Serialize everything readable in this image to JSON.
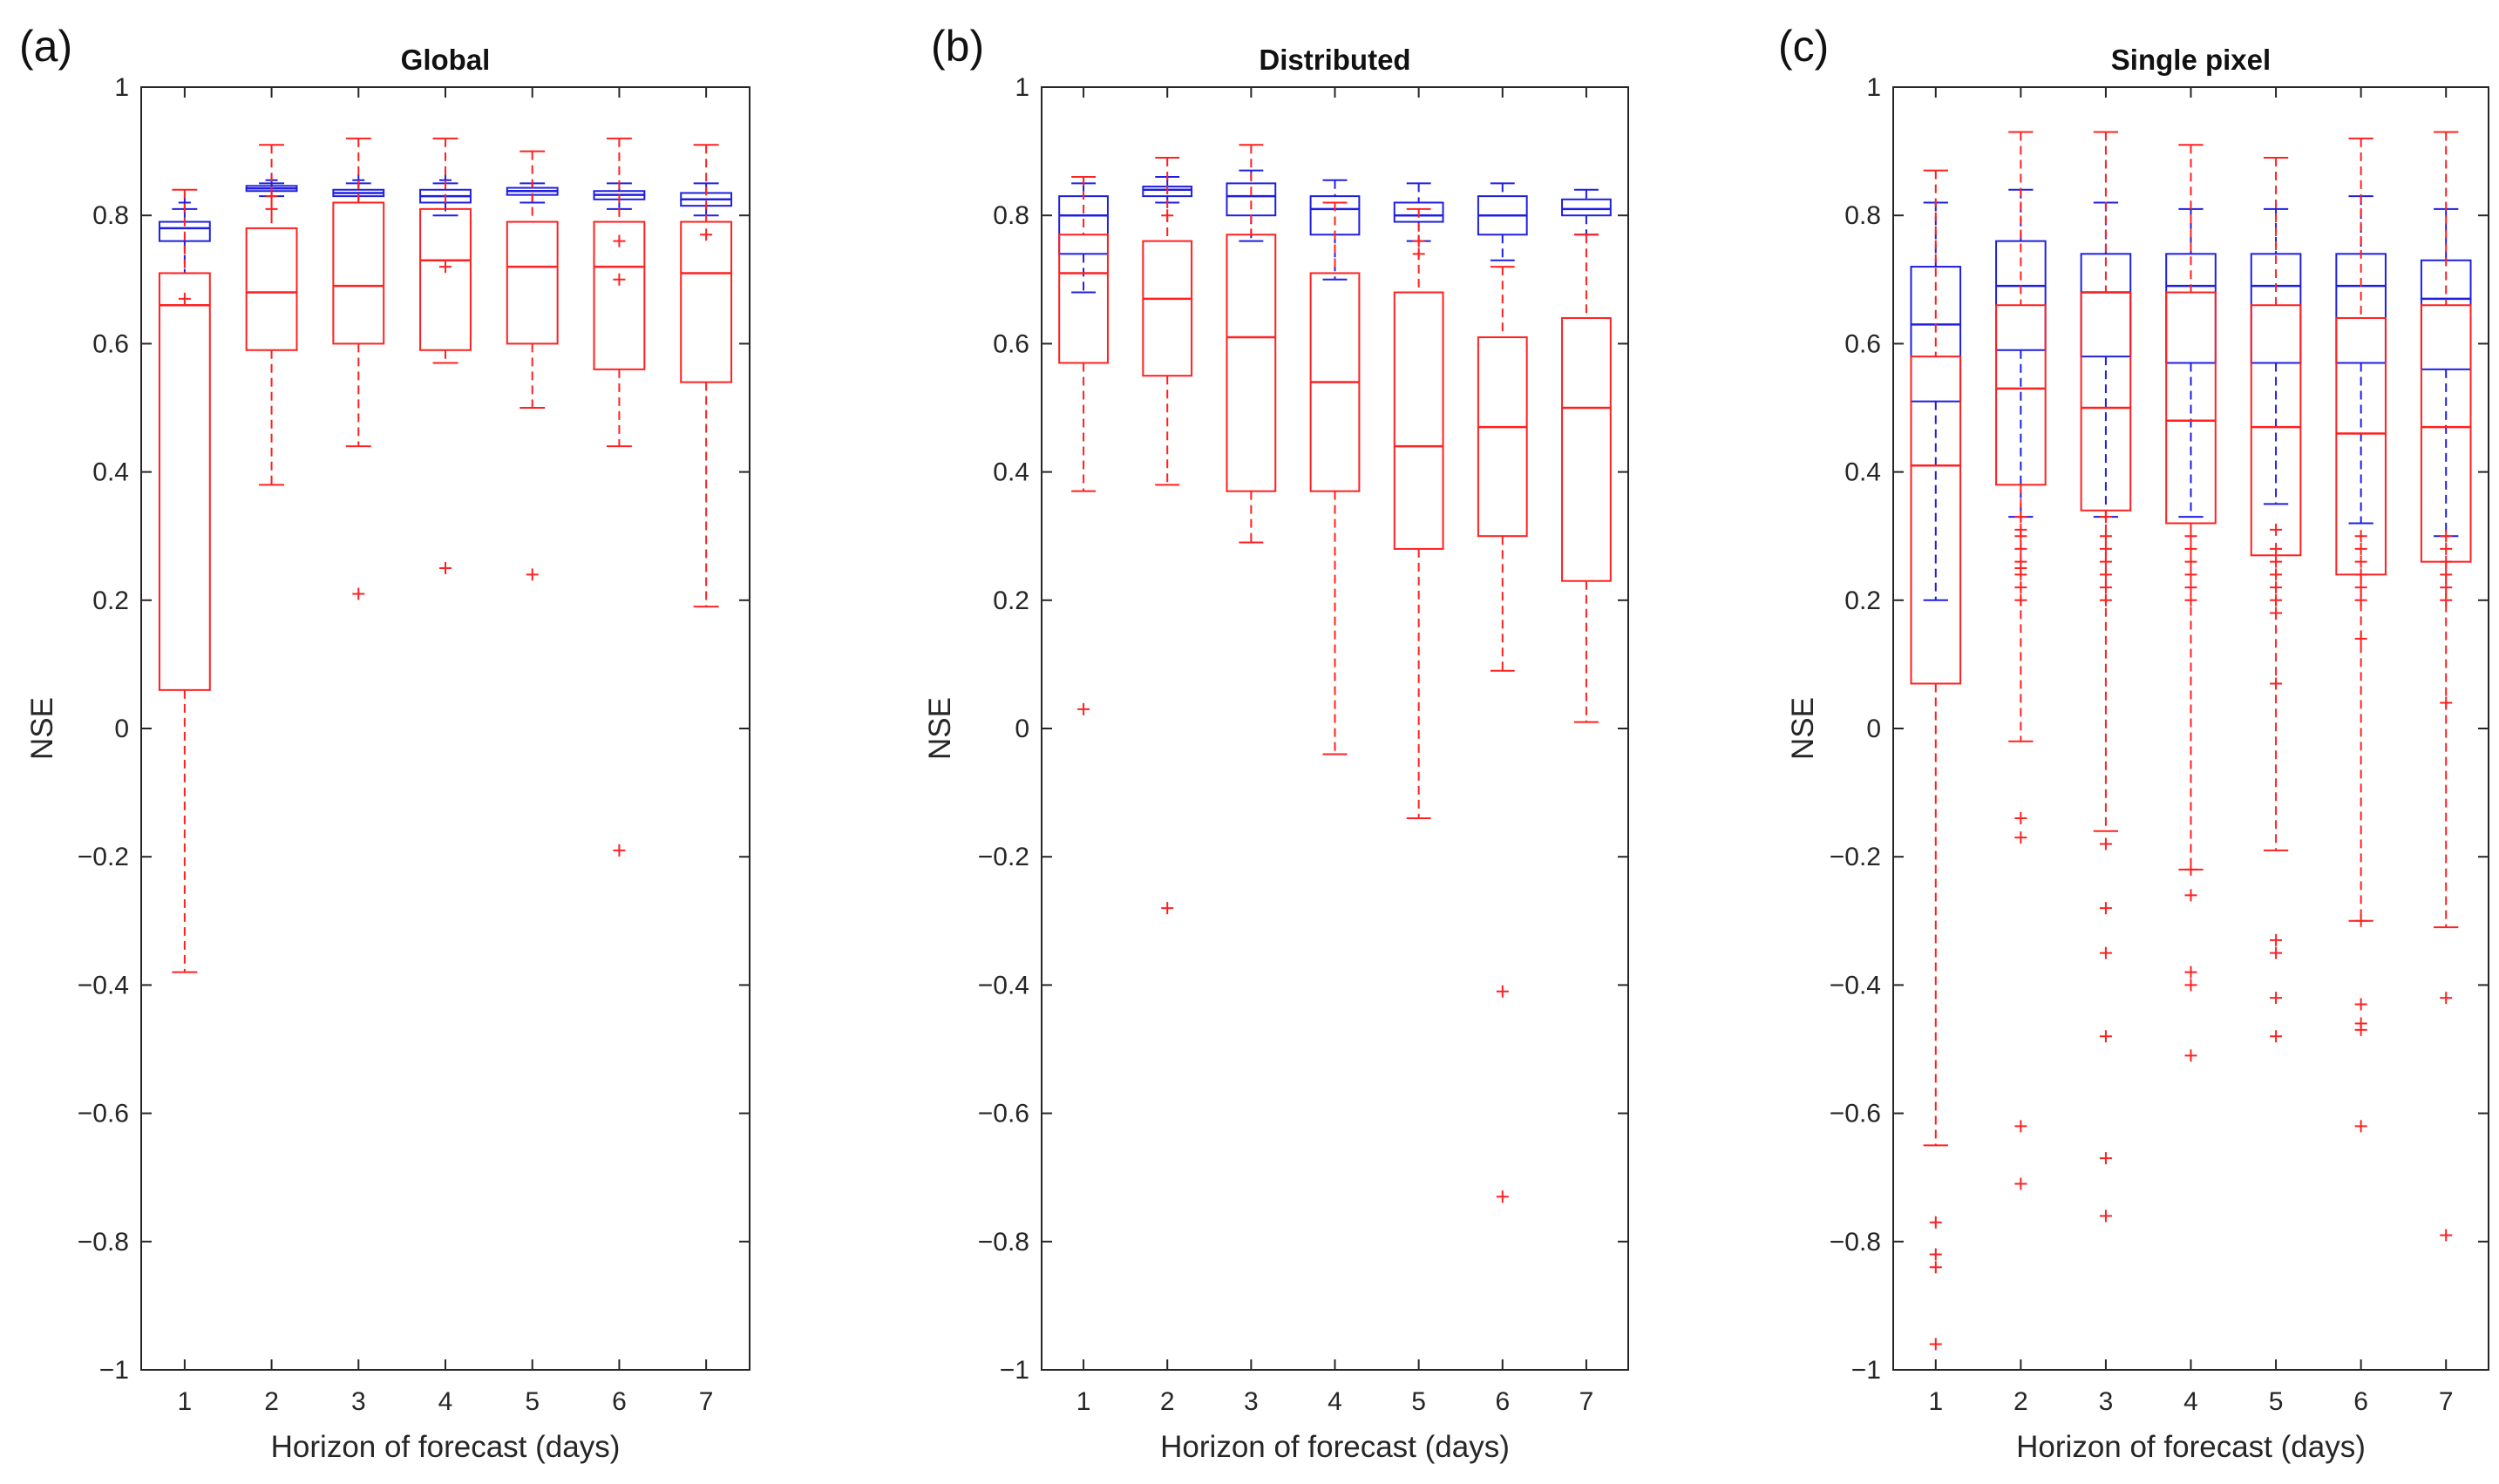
{
  "colors": {
    "blue": "#1f1fe0",
    "red": "#ff2020",
    "axis": "#262626"
  },
  "chart_data": [
    {
      "type": "box",
      "panel_label": "(a)",
      "title": "Global",
      "xlabel": "Horizon of forecast (days)",
      "ylabel": "NSE",
      "categories": [
        "1",
        "2",
        "3",
        "4",
        "5",
        "6",
        "7"
      ],
      "ylim": [
        -1,
        1
      ],
      "yticks": [
        "-1",
        "-0.8",
        "-0.6",
        "-0.4",
        "-0.2",
        "0",
        "0.2",
        "0.4",
        "0.6",
        "0.8",
        "1"
      ],
      "grid": false,
      "series": [
        {
          "color": "blue",
          "boxes": [
            {
              "q1": 0.76,
              "median": 0.78,
              "q3": 0.79,
              "wlo": 0.71,
              "whi": 0.81,
              "outliers": [
                0.82
              ]
            },
            {
              "q1": 0.838,
              "median": 0.842,
              "q3": 0.846,
              "wlo": 0.83,
              "whi": 0.85,
              "outliers": [
                0.855
              ]
            },
            {
              "q1": 0.83,
              "median": 0.835,
              "q3": 0.84,
              "wlo": 0.82,
              "whi": 0.85,
              "outliers": [
                0.855
              ]
            },
            {
              "q1": 0.82,
              "median": 0.83,
              "q3": 0.84,
              "wlo": 0.8,
              "whi": 0.85,
              "outliers": [
                0.855
              ]
            },
            {
              "q1": 0.832,
              "median": 0.838,
              "q3": 0.843,
              "wlo": 0.82,
              "whi": 0.85,
              "outliers": []
            },
            {
              "q1": 0.825,
              "median": 0.832,
              "q3": 0.838,
              "wlo": 0.81,
              "whi": 0.85,
              "outliers": []
            },
            {
              "q1": 0.815,
              "median": 0.825,
              "q3": 0.835,
              "wlo": 0.8,
              "whi": 0.85,
              "outliers": []
            }
          ]
        },
        {
          "color": "red",
          "boxes": [
            {
              "q1": 0.06,
              "median": 0.66,
              "q3": 0.71,
              "wlo": -0.38,
              "whi": 0.84,
              "outliers": [
                0.67
              ]
            },
            {
              "q1": 0.59,
              "median": 0.68,
              "q3": 0.78,
              "wlo": 0.38,
              "whi": 0.91,
              "outliers": [
                0.81,
                0.83
              ]
            },
            {
              "q1": 0.6,
              "median": 0.69,
              "q3": 0.82,
              "wlo": 0.44,
              "whi": 0.92,
              "outliers": [
                0.21
              ]
            },
            {
              "q1": 0.59,
              "median": 0.73,
              "q3": 0.81,
              "wlo": 0.57,
              "whi": 0.92,
              "outliers": [
                0.25,
                0.72
              ]
            },
            {
              "q1": 0.6,
              "median": 0.72,
              "q3": 0.79,
              "wlo": 0.5,
              "whi": 0.9,
              "outliers": [
                0.24
              ]
            },
            {
              "q1": 0.56,
              "median": 0.72,
              "q3": 0.79,
              "wlo": 0.44,
              "whi": 0.92,
              "outliers": [
                -0.19,
                0.7,
                0.76
              ]
            },
            {
              "q1": 0.54,
              "median": 0.71,
              "q3": 0.79,
              "wlo": 0.19,
              "whi": 0.91,
              "outliers": [
                0.77
              ]
            }
          ]
        }
      ]
    },
    {
      "type": "box",
      "panel_label": "(b)",
      "title": "Distributed",
      "xlabel": "Horizon of forecast (days)",
      "ylabel": "NSE",
      "categories": [
        "1",
        "2",
        "3",
        "4",
        "5",
        "6",
        "7"
      ],
      "ylim": [
        -1,
        1
      ],
      "yticks": [
        "-1",
        "-0.8",
        "-0.6",
        "-0.4",
        "-0.2",
        "0",
        "0.2",
        "0.4",
        "0.6",
        "0.8",
        "1"
      ],
      "grid": false,
      "series": [
        {
          "color": "blue",
          "boxes": [
            {
              "q1": 0.74,
              "median": 0.8,
              "q3": 0.83,
              "wlo": 0.68,
              "whi": 0.85,
              "outliers": []
            },
            {
              "q1": 0.83,
              "median": 0.84,
              "q3": 0.845,
              "wlo": 0.82,
              "whi": 0.86,
              "outliers": []
            },
            {
              "q1": 0.8,
              "median": 0.83,
              "q3": 0.85,
              "wlo": 0.76,
              "whi": 0.87,
              "outliers": []
            },
            {
              "q1": 0.77,
              "median": 0.81,
              "q3": 0.83,
              "wlo": 0.7,
              "whi": 0.855,
              "outliers": []
            },
            {
              "q1": 0.79,
              "median": 0.8,
              "q3": 0.82,
              "wlo": 0.76,
              "whi": 0.85,
              "outliers": []
            },
            {
              "q1": 0.77,
              "median": 0.8,
              "q3": 0.83,
              "wlo": 0.73,
              "whi": 0.85,
              "outliers": []
            },
            {
              "q1": 0.8,
              "median": 0.81,
              "q3": 0.825,
              "wlo": 0.77,
              "whi": 0.84,
              "outliers": []
            }
          ]
        },
        {
          "color": "red",
          "boxes": [
            {
              "q1": 0.57,
              "median": 0.71,
              "q3": 0.77,
              "wlo": 0.37,
              "whi": 0.86,
              "outliers": [
                0.03
              ]
            },
            {
              "q1": 0.55,
              "median": 0.67,
              "q3": 0.76,
              "wlo": 0.38,
              "whi": 0.89,
              "outliers": [
                -0.28,
                0.8
              ]
            },
            {
              "q1": 0.37,
              "median": 0.61,
              "q3": 0.77,
              "wlo": 0.29,
              "whi": 0.91,
              "outliers": []
            },
            {
              "q1": 0.37,
              "median": 0.54,
              "q3": 0.71,
              "wlo": -0.04,
              "whi": 0.82,
              "outliers": []
            },
            {
              "q1": 0.28,
              "median": 0.44,
              "q3": 0.68,
              "wlo": -0.14,
              "whi": 0.81,
              "outliers": [
                0.74,
                0.76
              ]
            },
            {
              "q1": 0.3,
              "median": 0.47,
              "q3": 0.61,
              "wlo": 0.09,
              "whi": 0.72,
              "outliers": [
                -0.41,
                -0.73
              ]
            },
            {
              "q1": 0.23,
              "median": 0.5,
              "q3": 0.64,
              "wlo": 0.01,
              "whi": 0.77,
              "outliers": []
            }
          ]
        }
      ]
    },
    {
      "type": "box",
      "panel_label": "(c)",
      "title": "Single pixel",
      "xlabel": "Horizon of forecast (days)",
      "ylabel": "NSE",
      "categories": [
        "1",
        "2",
        "3",
        "4",
        "5",
        "6",
        "7"
      ],
      "ylim": [
        -1,
        1
      ],
      "yticks": [
        "-1",
        "-0.8",
        "-0.6",
        "-0.4",
        "-0.2",
        "0",
        "0.2",
        "0.4",
        "0.6",
        "0.8",
        "1"
      ],
      "grid": false,
      "series": [
        {
          "color": "blue",
          "boxes": [
            {
              "q1": 0.51,
              "median": 0.63,
              "q3": 0.72,
              "wlo": 0.2,
              "whi": 0.82,
              "outliers": []
            },
            {
              "q1": 0.59,
              "median": 0.69,
              "q3": 0.76,
              "wlo": 0.33,
              "whi": 0.84,
              "outliers": []
            },
            {
              "q1": 0.58,
              "median": 0.68,
              "q3": 0.74,
              "wlo": 0.33,
              "whi": 0.82,
              "outliers": []
            },
            {
              "q1": 0.57,
              "median": 0.69,
              "q3": 0.74,
              "wlo": 0.33,
              "whi": 0.81,
              "outliers": []
            },
            {
              "q1": 0.57,
              "median": 0.69,
              "q3": 0.74,
              "wlo": 0.35,
              "whi": 0.81,
              "outliers": []
            },
            {
              "q1": 0.57,
              "median": 0.69,
              "q3": 0.74,
              "wlo": 0.32,
              "whi": 0.83,
              "outliers": []
            },
            {
              "q1": 0.56,
              "median": 0.67,
              "q3": 0.73,
              "wlo": 0.3,
              "whi": 0.81,
              "outliers": []
            }
          ]
        },
        {
          "color": "red",
          "boxes": [
            {
              "q1": 0.07,
              "median": 0.41,
              "q3": 0.58,
              "wlo": -0.65,
              "whi": 0.87,
              "outliers": [
                -0.77,
                -0.82,
                -0.84,
                -0.96
              ]
            },
            {
              "q1": 0.38,
              "median": 0.53,
              "q3": 0.66,
              "wlo": -0.02,
              "whi": 0.93,
              "outliers": [
                0.33,
                0.31,
                0.3,
                0.28,
                0.26,
                0.25,
                0.24,
                0.22,
                0.2,
                -0.14,
                -0.17,
                -0.62,
                -0.71
              ]
            },
            {
              "q1": 0.34,
              "median": 0.5,
              "q3": 0.68,
              "wlo": -0.16,
              "whi": 0.93,
              "outliers": [
                0.33,
                0.3,
                0.28,
                0.26,
                0.24,
                0.22,
                0.2,
                -0.18,
                -0.28,
                -0.35,
                -0.48,
                -0.67,
                -0.76
              ]
            },
            {
              "q1": 0.32,
              "median": 0.48,
              "q3": 0.68,
              "wlo": -0.22,
              "whi": 0.91,
              "outliers": [
                0.3,
                0.28,
                0.26,
                0.24,
                0.22,
                0.2,
                -0.22,
                -0.26,
                -0.38,
                -0.4,
                -0.51
              ]
            },
            {
              "q1": 0.27,
              "median": 0.47,
              "q3": 0.66,
              "wlo": -0.19,
              "whi": 0.89,
              "outliers": [
                0.31,
                0.28,
                0.26,
                0.24,
                0.22,
                0.2,
                0.18,
                0.07,
                -0.33,
                -0.35,
                -0.42,
                -0.48
              ]
            },
            {
              "q1": 0.24,
              "median": 0.46,
              "q3": 0.64,
              "wlo": -0.3,
              "whi": 0.92,
              "outliers": [
                0.3,
                0.28,
                0.26,
                0.24,
                0.22,
                0.2,
                0.14,
                -0.3,
                -0.43,
                -0.46,
                -0.47,
                -0.62
              ]
            },
            {
              "q1": 0.26,
              "median": 0.47,
              "q3": 0.66,
              "wlo": -0.31,
              "whi": 0.93,
              "outliers": [
                0.3,
                0.28,
                0.26,
                0.24,
                0.22,
                0.2,
                0.04,
                -0.42,
                -0.79
              ]
            }
          ]
        }
      ]
    }
  ]
}
